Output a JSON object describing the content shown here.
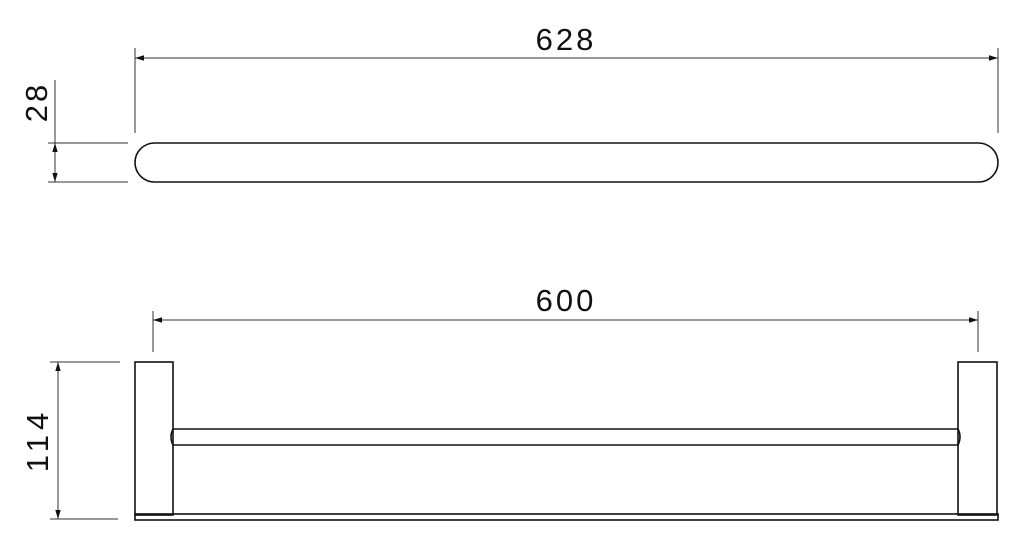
{
  "dimensions": {
    "top_length": "628",
    "top_thickness": "28",
    "front_length": "600",
    "front_height": "114"
  },
  "colors": {
    "line": "#111111",
    "dimension_line": "#333333"
  }
}
